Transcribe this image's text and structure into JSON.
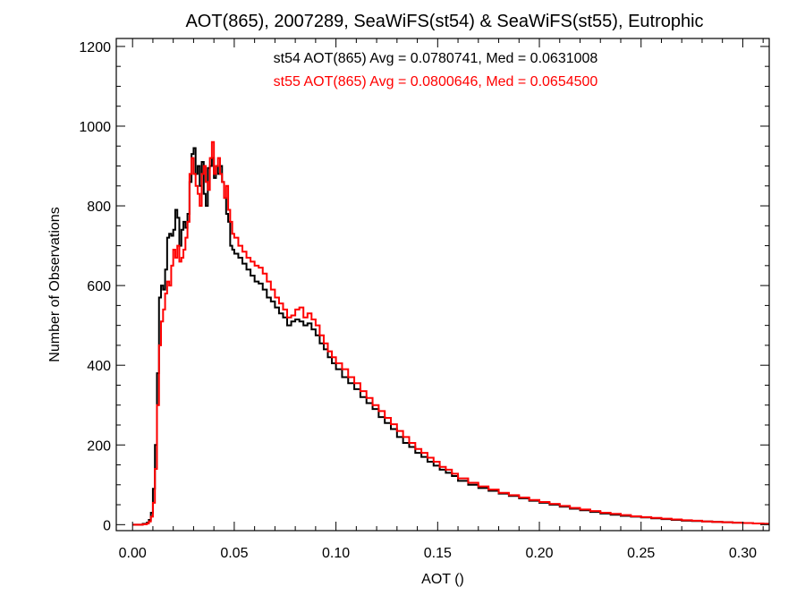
{
  "chart_data": {
    "type": "line",
    "title": "AOT(865), 2007289, SeaWiFS(st54) & SeaWiFS(st55), Eutrophic",
    "xlabel": "AOT ()",
    "ylabel": "Number of Observations",
    "xlim": [
      -0.008,
      0.313
    ],
    "ylim": [
      -15,
      1220
    ],
    "xticks": [
      0.0,
      0.05,
      0.1,
      0.15,
      0.2,
      0.25,
      0.3
    ],
    "xtick_labels": [
      "0.00",
      "0.05",
      "0.10",
      "0.15",
      "0.20",
      "0.25",
      "0.30"
    ],
    "yticks": [
      0,
      200,
      400,
      600,
      800,
      1000,
      1200
    ],
    "ytick_labels": [
      "0",
      "200",
      "400",
      "600",
      "800",
      "1000",
      "1200"
    ],
    "grid": false,
    "bin_width": 0.001,
    "annotations": [
      {
        "text": "st54 AOT(865) Avg = 0.0780741, Med = 0.0631008",
        "color": "#000000"
      },
      {
        "text": "st55 AOT(865) Avg = 0.0800646, Med = 0.0654500",
        "color": "#ff0000"
      }
    ],
    "series": [
      {
        "color": "#000000",
        "x": [
          0.0,
          0.003,
          0.005,
          0.007,
          0.008,
          0.009,
          0.01,
          0.011,
          0.012,
          0.013,
          0.014,
          0.015,
          0.016,
          0.017,
          0.018,
          0.019,
          0.02,
          0.021,
          0.022,
          0.023,
          0.024,
          0.025,
          0.026,
          0.027,
          0.028,
          0.029,
          0.03,
          0.031,
          0.032,
          0.033,
          0.034,
          0.035,
          0.036,
          0.037,
          0.038,
          0.039,
          0.04,
          0.041,
          0.042,
          0.043,
          0.044,
          0.045,
          0.046,
          0.047,
          0.048,
          0.049,
          0.05,
          0.052,
          0.054,
          0.056,
          0.058,
          0.06,
          0.062,
          0.064,
          0.066,
          0.068,
          0.07,
          0.072,
          0.074,
          0.076,
          0.078,
          0.08,
          0.082,
          0.084,
          0.086,
          0.088,
          0.09,
          0.092,
          0.094,
          0.096,
          0.098,
          0.1,
          0.103,
          0.106,
          0.109,
          0.112,
          0.115,
          0.118,
          0.121,
          0.124,
          0.127,
          0.13,
          0.133,
          0.136,
          0.139,
          0.142,
          0.145,
          0.148,
          0.151,
          0.154,
          0.157,
          0.16,
          0.165,
          0.17,
          0.175,
          0.18,
          0.185,
          0.19,
          0.195,
          0.2,
          0.205,
          0.21,
          0.215,
          0.22,
          0.225,
          0.23,
          0.235,
          0.24,
          0.245,
          0.25,
          0.255,
          0.26,
          0.265,
          0.27,
          0.275,
          0.28,
          0.285,
          0.29,
          0.295,
          0.3,
          0.305,
          0.31,
          0.313
        ],
        "y": [
          0,
          0,
          2,
          5,
          12,
          30,
          90,
          200,
          380,
          570,
          600,
          590,
          640,
          720,
          730,
          725,
          740,
          790,
          770,
          700,
          740,
          760,
          745,
          780,
          860,
          930,
          945,
          880,
          900,
          850,
          910,
          830,
          800,
          895,
          900,
          920,
          870,
          900,
          880,
          900,
          860,
          820,
          780,
          760,
          700,
          690,
          680,
          670,
          655,
          640,
          625,
          610,
          605,
          590,
          570,
          560,
          545,
          530,
          520,
          500,
          510,
          515,
          510,
          500,
          505,
          490,
          475,
          455,
          440,
          420,
          405,
          390,
          370,
          355,
          340,
          320,
          305,
          290,
          270,
          255,
          240,
          220,
          205,
          195,
          180,
          170,
          158,
          148,
          138,
          130,
          122,
          110,
          100,
          92,
          85,
          78,
          72,
          66,
          60,
          55,
          50,
          45,
          40,
          36,
          32,
          28,
          25,
          22,
          20,
          18,
          16,
          14,
          12,
          10,
          9,
          8,
          7,
          6,
          5,
          4,
          3,
          2,
          1
        ]
      },
      {
        "color": "#ff0000",
        "x": [
          0.0,
          0.003,
          0.005,
          0.007,
          0.008,
          0.009,
          0.01,
          0.011,
          0.012,
          0.013,
          0.014,
          0.015,
          0.016,
          0.017,
          0.018,
          0.019,
          0.02,
          0.021,
          0.022,
          0.023,
          0.024,
          0.025,
          0.026,
          0.027,
          0.028,
          0.029,
          0.03,
          0.031,
          0.032,
          0.033,
          0.034,
          0.035,
          0.036,
          0.037,
          0.038,
          0.039,
          0.04,
          0.041,
          0.042,
          0.043,
          0.044,
          0.045,
          0.046,
          0.047,
          0.048,
          0.049,
          0.05,
          0.052,
          0.054,
          0.056,
          0.058,
          0.06,
          0.062,
          0.064,
          0.066,
          0.068,
          0.07,
          0.072,
          0.074,
          0.076,
          0.078,
          0.08,
          0.082,
          0.084,
          0.086,
          0.088,
          0.09,
          0.092,
          0.094,
          0.096,
          0.098,
          0.1,
          0.103,
          0.106,
          0.109,
          0.112,
          0.115,
          0.118,
          0.121,
          0.124,
          0.127,
          0.13,
          0.133,
          0.136,
          0.139,
          0.142,
          0.145,
          0.148,
          0.151,
          0.154,
          0.157,
          0.16,
          0.165,
          0.17,
          0.175,
          0.18,
          0.185,
          0.19,
          0.195,
          0.2,
          0.205,
          0.21,
          0.215,
          0.22,
          0.225,
          0.23,
          0.235,
          0.24,
          0.245,
          0.25,
          0.255,
          0.26,
          0.265,
          0.27,
          0.275,
          0.28,
          0.285,
          0.29,
          0.295,
          0.3,
          0.305,
          0.31,
          0.313
        ],
        "y": [
          0,
          0,
          1,
          3,
          8,
          20,
          55,
          140,
          300,
          450,
          510,
          540,
          580,
          610,
          600,
          650,
          690,
          670,
          700,
          660,
          670,
          690,
          720,
          760,
          880,
          920,
          880,
          850,
          830,
          800,
          880,
          900,
          860,
          840,
          920,
          960,
          880,
          900,
          920,
          880,
          860,
          820,
          850,
          790,
          760,
          730,
          720,
          700,
          685,
          670,
          660,
          650,
          645,
          630,
          610,
          590,
          570,
          555,
          540,
          520,
          525,
          540,
          545,
          520,
          530,
          515,
          500,
          475,
          455,
          435,
          420,
          405,
          390,
          370,
          355,
          335,
          318,
          300,
          285,
          268,
          252,
          235,
          220,
          205,
          190,
          180,
          168,
          158,
          145,
          138,
          128,
          116,
          105,
          96,
          88,
          80,
          74,
          68,
          62,
          57,
          52,
          47,
          42,
          38,
          34,
          30,
          27,
          24,
          21,
          19,
          17,
          15,
          13,
          11,
          10,
          8,
          7,
          6,
          5,
          4,
          3,
          2,
          1
        ]
      }
    ]
  }
}
